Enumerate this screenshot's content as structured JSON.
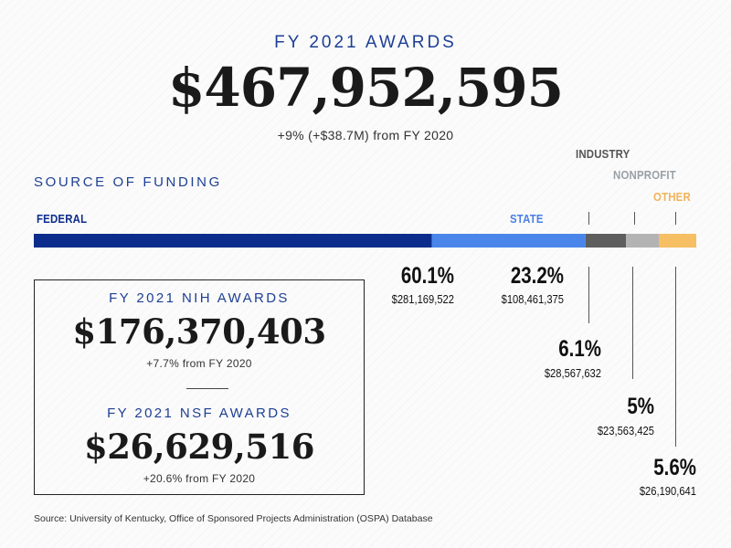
{
  "header": {
    "title": "FY 2021 AWARDS",
    "total": "$467,952,595",
    "change": "+9% (+$38.7M) from FY 2020"
  },
  "funding": {
    "heading": "SOURCE OF FUNDING"
  },
  "chart_data": {
    "type": "bar",
    "stacked": true,
    "orientation": "horizontal",
    "title": "SOURCE OF FUNDING",
    "categories": [
      "FEDERAL",
      "STATE",
      "INDUSTRY",
      "NONPROFIT",
      "OTHER"
    ],
    "series": [
      {
        "name": "FEDERAL",
        "label": "FEDERAL",
        "value": 60.1,
        "percent_label": "60.1%",
        "amount_label": "$281,169,522",
        "color": "#0d2d8c"
      },
      {
        "name": "STATE",
        "label": "STATE",
        "value": 23.2,
        "percent_label": "23.2%",
        "amount_label": "$108,461,375",
        "color": "#4a86ea"
      },
      {
        "name": "INDUSTRY",
        "label": "INDUSTRY",
        "value": 6.1,
        "percent_label": "6.1%",
        "amount_label": "$28,567,632",
        "color": "#5e5e5e"
      },
      {
        "name": "NONPROFIT",
        "label": "NONPROFIT",
        "value": 5,
        "percent_label": "5%",
        "amount_label": "$23,563,425",
        "color": "#b3b3b3"
      },
      {
        "name": "OTHER",
        "label": "OTHER",
        "value": 5.6,
        "percent_label": "5.6%",
        "amount_label": "$26,190,641",
        "color": "#f7bf63"
      }
    ]
  },
  "nih": {
    "title": "FY 2021 NIH AWARDS",
    "amount": "$176,370,403",
    "change": "+7.7% from FY 2020"
  },
  "nsf": {
    "title": "FY 2021 NSF AWARDS",
    "amount": "$26,629,516",
    "change": "+20.6% from FY 2020"
  },
  "source": "Source: University of Kentucky, Office of Sponsored Projects Administration (OSPA) Database"
}
